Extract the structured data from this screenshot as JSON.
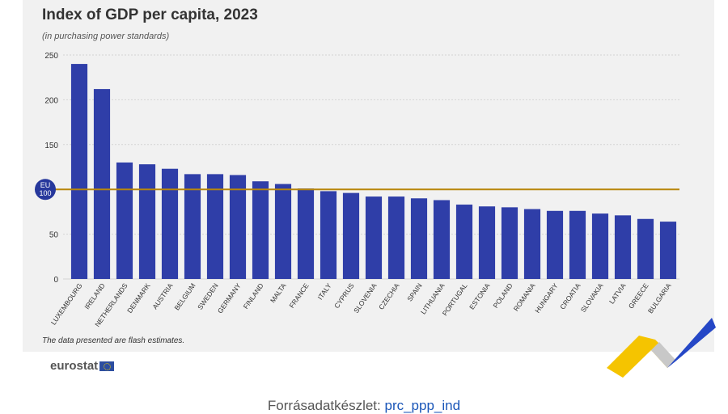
{
  "colors": {
    "bar": "#2f3ea8",
    "reference_line": "#b8860b",
    "reference_badge": "#27389c",
    "grid": "#d4d4d4",
    "text": "#333333"
  },
  "chart_data": {
    "type": "bar",
    "title": "Index of GDP per capita, 2023",
    "subtitle": "(in purchasing power standards)",
    "note": "The data presented are flash estimates.",
    "categories": [
      "LUXEMBOURG",
      "IRELAND",
      "NETHERLANDS",
      "DENMARK",
      "AUSTRIA",
      "BELGIUM",
      "SWEDEN",
      "GERMANY",
      "FINLAND",
      "MALTA",
      "FRANCE",
      "ITALY",
      "CYPRUS",
      "SLOVENIA",
      "CZECHIA",
      "SPAIN",
      "LITHUANIA",
      "PORTUGAL",
      "ESTONIA",
      "POLAND",
      "ROMANIA",
      "HUNGARY",
      "CROATIA",
      "SLOVAKIA",
      "LATVIA",
      "GREECE",
      "BULGARIA"
    ],
    "values": [
      240,
      212,
      130,
      128,
      123,
      117,
      117,
      116,
      109,
      106,
      101,
      98,
      96,
      92,
      92,
      90,
      88,
      83,
      81,
      80,
      78,
      76,
      76,
      73,
      71,
      67,
      64
    ],
    "ylim": [
      0,
      250
    ],
    "yticks": [
      0,
      50,
      100,
      150,
      200,
      250
    ],
    "ytick_labels": [
      "0",
      "50",
      "",
      "150",
      "200",
      "250"
    ],
    "reference": {
      "value": 100,
      "label_line1": "EU",
      "label_line2": "100"
    },
    "grid": true
  },
  "footer": {
    "logo_text": "eurostat",
    "source_prefix": "Forrásadatkészlet: ",
    "source_link": "prc_ppp_ind"
  }
}
